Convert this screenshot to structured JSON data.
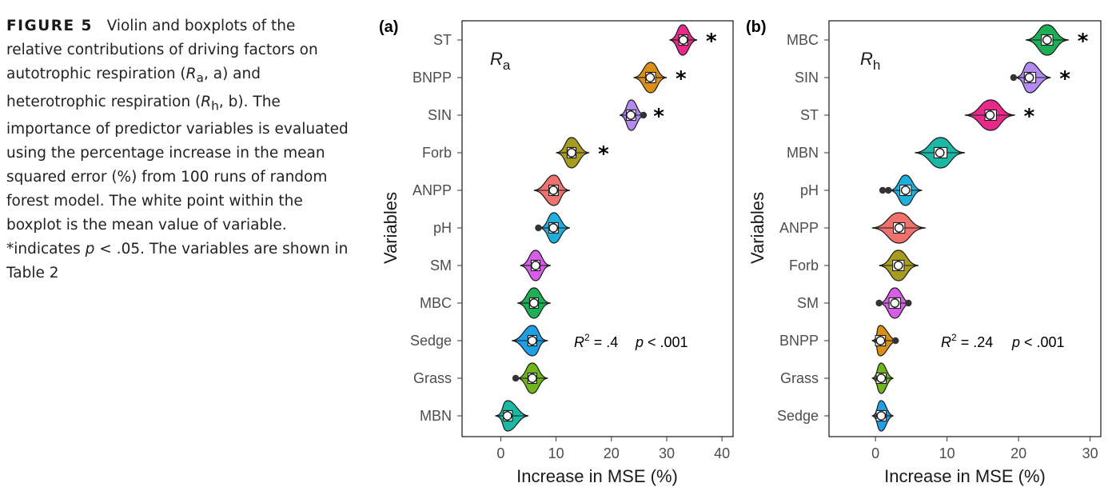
{
  "caption": {
    "figure_label": "FIGURE 5",
    "t1": "Violin and boxplots of the relative contributions of driving factors on autotrophic respiration (",
    "ra_sym": "R",
    "ra_sub": "a",
    "t2": ", a) and heterotrophic respiration (",
    "rh_sym": "R",
    "rh_sub": "h",
    "t3": ", b). The importance of predictor variables is evaluated using the percentage increase in the mean squared error (%) from 100 runs of random forest model. The white point within the boxplot is the mean value of variable. *indicates ",
    "p_sym": "p",
    "t4": " < .05. The variables are shown in Table 2"
  },
  "chart_data": [
    {
      "type": "violin",
      "panel_tag": "(a)",
      "title_sym": "R",
      "title_sub": "a",
      "xlabel": "Increase in MSE (%)",
      "ylabel": "Variables",
      "xlim": [
        -7,
        42
      ],
      "xticks": [
        0,
        10,
        20,
        30,
        40
      ],
      "r2_label": "R",
      "r2_sup": "2",
      "r2_value": " = .4",
      "p_label": "p",
      "p_value": " < .001",
      "grid": false,
      "items": [
        {
          "name": "ST",
          "mean": 33,
          "median": 32.9,
          "q1": 32.2,
          "q3": 33.8,
          "lo": 30.5,
          "hi": 35.5,
          "outliers": [],
          "star": true,
          "color": "#E7298A"
        },
        {
          "name": "BNPP",
          "mean": 27,
          "median": 27.1,
          "q1": 26.2,
          "q3": 28.0,
          "lo": 24.0,
          "hi": 30.0,
          "outliers": [],
          "star": true,
          "color": "#D98E15"
        },
        {
          "name": "SIN",
          "mean": 23.5,
          "median": 23.6,
          "q1": 22.7,
          "q3": 24.4,
          "lo": 21.5,
          "hi": 26.0,
          "outliers": [
            25.8
          ],
          "star": true,
          "color": "#B38BF0"
        },
        {
          "name": "Forb",
          "mean": 12.8,
          "median": 12.8,
          "q1": 12.0,
          "q3": 13.6,
          "lo": 10.0,
          "hi": 16.0,
          "outliers": [],
          "star": true,
          "color": "#A89C1E"
        },
        {
          "name": "ANPP",
          "mean": 9.5,
          "median": 9.6,
          "q1": 8.7,
          "q3": 10.4,
          "lo": 6.0,
          "hi": 12.5,
          "outliers": [],
          "star": false,
          "color": "#F0726C"
        },
        {
          "name": "pH",
          "mean": 9.5,
          "median": 9.6,
          "q1": 8.7,
          "q3": 10.4,
          "lo": 7.0,
          "hi": 12.5,
          "outliers": [
            6.8
          ],
          "star": false,
          "color": "#1EB0DC"
        },
        {
          "name": "SM",
          "mean": 6.3,
          "median": 6.3,
          "q1": 5.5,
          "q3": 7.1,
          "lo": 3.5,
          "hi": 9.0,
          "outliers": [],
          "star": false,
          "color": "#D75CE8"
        },
        {
          "name": "MBC",
          "mean": 6.0,
          "median": 6.0,
          "q1": 5.2,
          "q3": 6.8,
          "lo": 3.0,
          "hi": 9.0,
          "outliers": [],
          "star": false,
          "color": "#1DAF55"
        },
        {
          "name": "Sedge",
          "mean": 5.7,
          "median": 5.7,
          "q1": 4.9,
          "q3": 6.5,
          "lo": 2.0,
          "hi": 8.5,
          "outliers": [],
          "star": false,
          "color": "#1E9FE6"
        },
        {
          "name": "Grass",
          "mean": 5.7,
          "median": 5.7,
          "q1": 4.9,
          "q3": 6.5,
          "lo": 3.0,
          "hi": 8.5,
          "outliers": [
            2.7
          ],
          "star": false,
          "color": "#6FB51E"
        },
        {
          "name": "MBN",
          "mean": 1.2,
          "median": 1.3,
          "q1": 0.5,
          "q3": 2.1,
          "lo": -1.0,
          "hi": 5.0,
          "outliers": [],
          "star": false,
          "color": "#1AB9A6"
        }
      ]
    },
    {
      "type": "violin",
      "panel_tag": "(b)",
      "title_sym": "R",
      "title_sub": "h",
      "xlabel": "Increase in MSE (%)",
      "ylabel": "Variables",
      "xlim": [
        -6.5,
        31.5
      ],
      "xticks": [
        0,
        10,
        20,
        30
      ],
      "r2_label": "R",
      "r2_sup": "2",
      "r2_value": " = .24",
      "p_label": "p",
      "p_value": " < .001",
      "grid": false,
      "items": [
        {
          "name": "MBC",
          "mean": 24.0,
          "median": 24.0,
          "q1": 23.2,
          "q3": 24.8,
          "lo": 21.0,
          "hi": 27.0,
          "outliers": [],
          "star": true,
          "color": "#1DAF55"
        },
        {
          "name": "SIN",
          "mean": 21.5,
          "median": 21.6,
          "q1": 20.8,
          "q3": 22.4,
          "lo": 19.5,
          "hi": 24.5,
          "outliers": [
            19.3
          ],
          "star": true,
          "color": "#B38BF0"
        },
        {
          "name": "ST",
          "mean": 16.0,
          "median": 16.1,
          "q1": 15.3,
          "q3": 16.9,
          "lo": 12.5,
          "hi": 19.5,
          "outliers": [],
          "star": true,
          "color": "#E7298A"
        },
        {
          "name": "MBN",
          "mean": 9.0,
          "median": 9.1,
          "q1": 8.2,
          "q3": 10.0,
          "lo": 5.5,
          "hi": 12.5,
          "outliers": [],
          "star": false,
          "color": "#1AB9A6"
        },
        {
          "name": "pH",
          "mean": 4.2,
          "median": 4.2,
          "q1": 3.4,
          "q3": 5.0,
          "lo": 2.0,
          "hi": 6.5,
          "outliers": [
            1.0,
            1.8
          ],
          "star": false,
          "color": "#1EB0DC"
        },
        {
          "name": "ANPP",
          "mean": 3.3,
          "median": 3.3,
          "q1": 2.5,
          "q3": 4.1,
          "lo": -0.5,
          "hi": 7.0,
          "outliers": [],
          "star": false,
          "color": "#F0726C"
        },
        {
          "name": "Forb",
          "mean": 3.2,
          "median": 3.2,
          "q1": 2.4,
          "q3": 4.0,
          "lo": 0.5,
          "hi": 6.0,
          "outliers": [],
          "star": false,
          "color": "#A89C1E"
        },
        {
          "name": "SM",
          "mean": 2.7,
          "median": 2.7,
          "q1": 1.9,
          "q3": 3.5,
          "lo": 0.5,
          "hi": 5.0,
          "outliers": [
            0.5,
            4.6
          ],
          "star": false,
          "color": "#D75CE8"
        },
        {
          "name": "BNPP",
          "mean": 0.7,
          "median": 0.7,
          "q1": 0.0,
          "q3": 1.4,
          "lo": -0.5,
          "hi": 3.0,
          "outliers": [
            2.8
          ],
          "star": false,
          "color": "#D98E15"
        },
        {
          "name": "Grass",
          "mean": 0.8,
          "median": 0.8,
          "q1": 0.1,
          "q3": 1.5,
          "lo": -0.5,
          "hi": 2.5,
          "outliers": [],
          "star": false,
          "color": "#6FB51E"
        },
        {
          "name": "Sedge",
          "mean": 0.8,
          "median": 0.8,
          "q1": 0.1,
          "q3": 1.5,
          "lo": -0.5,
          "hi": 2.5,
          "outliers": [],
          "star": false,
          "color": "#1E9FE6"
        }
      ]
    }
  ]
}
